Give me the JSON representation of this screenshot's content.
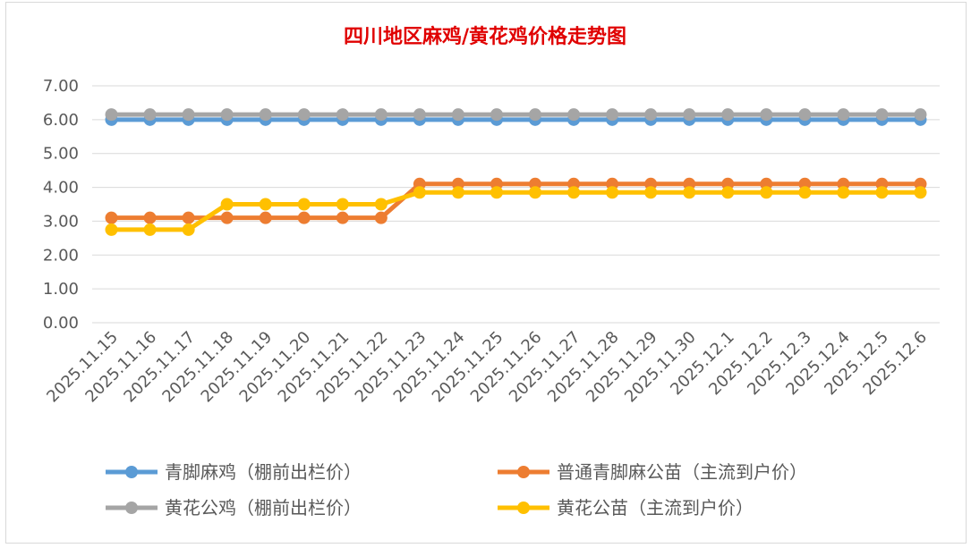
{
  "chart_data": {
    "type": "line",
    "title": "四川地区麻鸡/黄花鸡价格走势图",
    "xlabel": "",
    "ylabel": "",
    "ylim": [
      0,
      7
    ],
    "yticks": [
      "0.00",
      "1.00",
      "2.00",
      "3.00",
      "4.00",
      "5.00",
      "6.00",
      "7.00"
    ],
    "grid": true,
    "legend_position": "bottom",
    "categories": [
      "2025.11.15",
      "2025.11.16",
      "2025.11.17",
      "2025.11.18",
      "2025.11.19",
      "2025.11.20",
      "2025.11.21",
      "2025.11.22",
      "2025.11.23",
      "2025.11.24",
      "2025.11.25",
      "2025.11.26",
      "2025.11.27",
      "2025.11.28",
      "2025.11.29",
      "2025.11.30",
      "2025.12.1",
      "2025.12.2",
      "2025.12.3",
      "2025.12.4",
      "2025.12.5",
      "2025.12.6"
    ],
    "series": [
      {
        "name": "青脚麻鸡（棚前出栏价）",
        "color": "#5b9bd5",
        "values": [
          6.0,
          6.0,
          6.0,
          6.0,
          6.0,
          6.0,
          6.0,
          6.0,
          6.0,
          6.0,
          6.0,
          6.0,
          6.0,
          6.0,
          6.0,
          6.0,
          6.0,
          6.0,
          6.0,
          6.0,
          6.0,
          6.0
        ]
      },
      {
        "name": "普通青脚麻公苗（主流到户价）",
        "color": "#ed7d31",
        "values": [
          3.1,
          3.1,
          3.1,
          3.1,
          3.1,
          3.1,
          3.1,
          3.1,
          4.1,
          4.1,
          4.1,
          4.1,
          4.1,
          4.1,
          4.1,
          4.1,
          4.1,
          4.1,
          4.1,
          4.1,
          4.1,
          4.1
        ]
      },
      {
        "name": "黄花公鸡（棚前出栏价）",
        "color": "#a5a5a5",
        "values": [
          6.15,
          6.15,
          6.15,
          6.15,
          6.15,
          6.15,
          6.15,
          6.15,
          6.15,
          6.15,
          6.15,
          6.15,
          6.15,
          6.15,
          6.15,
          6.15,
          6.15,
          6.15,
          6.15,
          6.15,
          6.15,
          6.15
        ]
      },
      {
        "name": "黄花公苗（主流到户价）",
        "color": "#ffc000",
        "values": [
          2.75,
          2.75,
          2.75,
          3.5,
          3.5,
          3.5,
          3.5,
          3.5,
          3.85,
          3.85,
          3.85,
          3.85,
          3.85,
          3.85,
          3.85,
          3.85,
          3.85,
          3.85,
          3.85,
          3.85,
          3.85,
          3.85
        ]
      }
    ]
  }
}
